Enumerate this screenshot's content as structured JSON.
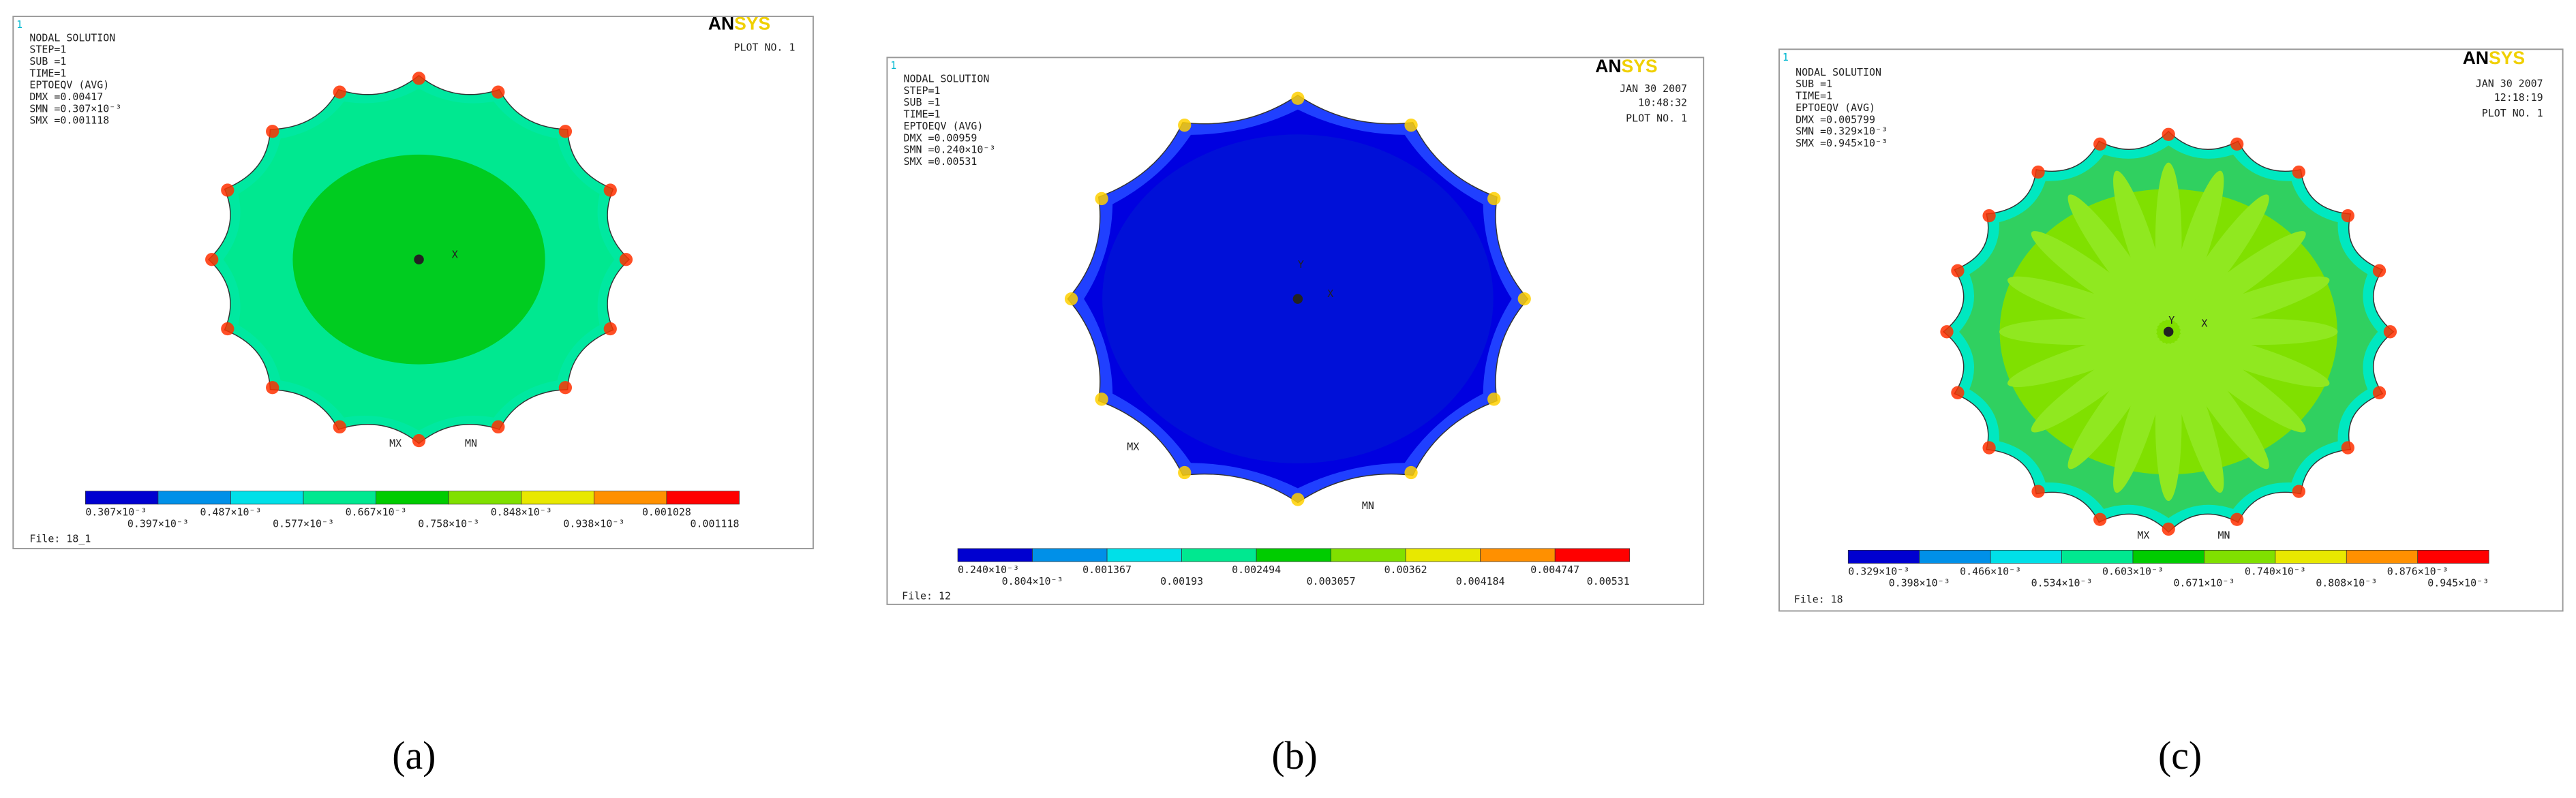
{
  "panels": [
    {
      "index_label": "1",
      "header": [
        "NODAL SOLUTION",
        "STEP=1",
        "SUB =1",
        "TIME=1",
        "EPTOEQV  (AVG)",
        "DMX =0.00417",
        "SMN =0.307×10⁻³",
        "SMX =0.001118"
      ],
      "logo": [
        "AN",
        "SYS"
      ],
      "datetime": [],
      "plot_no": "PLOT NO.   1",
      "triad": [
        "X"
      ],
      "markers": [
        "MX",
        "MN"
      ],
      "legend_labels": [
        "0.307×10⁻³",
        "0.397×10⁻³",
        "0.487×10⁻³",
        "0.577×10⁻³",
        "0.667×10⁻³",
        "0.758×10⁻³",
        "0.848×10⁻³",
        "0.938×10⁻³",
        "0.001028",
        "0.001118"
      ],
      "file": "File: 18_1",
      "caption": "(a)"
    },
    {
      "index_label": "1",
      "header": [
        "NODAL SOLUTION",
        "STEP=1",
        "SUB =1",
        "TIME=1",
        "EPTOEQV  (AVG)",
        "DMX =0.00959",
        "SMN =0.240×10⁻³",
        "SMX =0.00531"
      ],
      "logo": [
        "AN",
        "SYS"
      ],
      "datetime": [
        "JAN 30 2007",
        "10:48:32"
      ],
      "plot_no": "PLOT NO.   1",
      "triad": [
        "Y",
        "X"
      ],
      "markers": [
        "MX",
        "MN"
      ],
      "legend_labels": [
        "0.240×10⁻³",
        "0.804×10⁻³",
        "0.001367",
        "0.00193",
        "0.002494",
        "0.003057",
        "0.00362",
        "0.004184",
        "0.004747",
        "0.00531"
      ],
      "file": "File: 12",
      "caption": "(b)"
    },
    {
      "index_label": "1",
      "header": [
        "NODAL SOLUTION",
        "SUB =1",
        "TIME=1",
        "EPTOEQV  (AVG)",
        "DMX =0.005799",
        "SMN =0.329×10⁻³",
        "SMX =0.945×10⁻³"
      ],
      "logo": [
        "AN",
        "SYS"
      ],
      "datetime": [
        "JAN 30 2007",
        "12:18:19"
      ],
      "plot_no": "PLOT NO.   1",
      "triad": [
        "Y",
        "X"
      ],
      "markers": [
        "MX",
        "MN"
      ],
      "legend_labels": [
        "0.329×10⁻³",
        "0.398×10⁻³",
        "0.466×10⁻³",
        "0.534×10⁻³",
        "0.603×10⁻³",
        "0.671×10⁻³",
        "0.740×10⁻³",
        "0.808×10⁻³",
        "0.876×10⁻³",
        "0.945×10⁻³"
      ],
      "file": "File: 18",
      "caption": "(c)"
    }
  ]
}
